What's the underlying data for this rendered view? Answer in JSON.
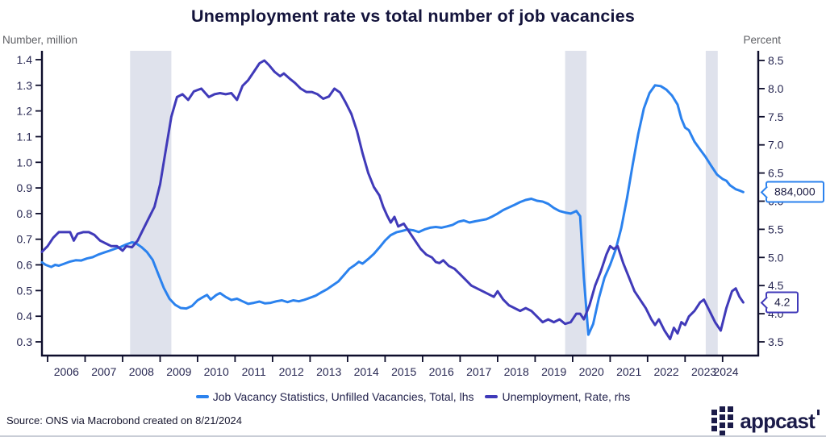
{
  "title": "Unemployment rate vs total number of job vacancies",
  "left_axis_unit": "Number, million",
  "right_axis_unit": "Percent",
  "footer": {
    "source": "Source: ONS via Macrobond created on 8/21/2024",
    "logo_text": "appcast"
  },
  "colors": {
    "vacancies": "#2b82ee",
    "unemployment": "#403ab9",
    "band": "#dfe2ec",
    "axis": "#0d0d2b",
    "tick_label": "#272752",
    "title": "#14143c",
    "unit_label": "#5f6065"
  },
  "chart_data": {
    "type": "line",
    "title": "Unemployment rate vs total number of job vacancies",
    "x_range": [
      2005.85,
      2024.95
    ],
    "x_ticks": [
      2006,
      2007,
      2008,
      2009,
      2010,
      2011,
      2012,
      2013,
      2014,
      2015,
      2016,
      2017,
      2018,
      2019,
      2020,
      2021,
      2022,
      2023,
      2024
    ],
    "left_axis_label": "Number, million",
    "left_range": [
      0.3,
      1.4
    ],
    "left_ticks": [
      1.4,
      1.3,
      1.2,
      1.1,
      1.0,
      0.9,
      0.8,
      0.7,
      0.6,
      0.5,
      0.4,
      0.3
    ],
    "right_axis_label": "Percent",
    "right_range": [
      3.5,
      8.5
    ],
    "right_ticks": [
      8.5,
      8.0,
      7.5,
      7.0,
      6.5,
      6.0,
      5.5,
      5.0,
      4.5,
      4.0,
      3.5
    ],
    "grid": false,
    "legend_position": "bottom",
    "recession_bands": [
      [
        2008.2,
        2009.3
      ],
      [
        2019.8,
        2020.37
      ],
      [
        2023.55,
        2023.87
      ]
    ],
    "callouts": [
      {
        "text": "884,000",
        "series": 0
      },
      {
        "text": "4.2",
        "series": 1
      }
    ],
    "series": [
      {
        "name": "Job Vacancy Statistics, Unfilled Vacancies, Total, lhs",
        "axis": "left",
        "color": "#2b82ee",
        "points": [
          [
            2005.85,
            0.61
          ],
          [
            2005.95,
            0.6
          ],
          [
            2006.1,
            0.592
          ],
          [
            2006.2,
            0.6
          ],
          [
            2006.3,
            0.597
          ],
          [
            2006.45,
            0.605
          ],
          [
            2006.6,
            0.613
          ],
          [
            2006.75,
            0.618
          ],
          [
            2006.9,
            0.617
          ],
          [
            2007.05,
            0.625
          ],
          [
            2007.2,
            0.63
          ],
          [
            2007.35,
            0.64
          ],
          [
            2007.5,
            0.648
          ],
          [
            2007.65,
            0.655
          ],
          [
            2007.8,
            0.663
          ],
          [
            2007.95,
            0.67
          ],
          [
            2008.1,
            0.68
          ],
          [
            2008.25,
            0.688
          ],
          [
            2008.35,
            0.685
          ],
          [
            2008.5,
            0.67
          ],
          [
            2008.65,
            0.65
          ],
          [
            2008.8,
            0.62
          ],
          [
            2008.95,
            0.565
          ],
          [
            2009.1,
            0.51
          ],
          [
            2009.25,
            0.468
          ],
          [
            2009.4,
            0.445
          ],
          [
            2009.55,
            0.432
          ],
          [
            2009.7,
            0.43
          ],
          [
            2009.85,
            0.44
          ],
          [
            2010.0,
            0.462
          ],
          [
            2010.15,
            0.475
          ],
          [
            2010.25,
            0.483
          ],
          [
            2010.35,
            0.465
          ],
          [
            2010.5,
            0.483
          ],
          [
            2010.6,
            0.49
          ],
          [
            2010.75,
            0.475
          ],
          [
            2010.9,
            0.463
          ],
          [
            2011.05,
            0.468
          ],
          [
            2011.2,
            0.458
          ],
          [
            2011.35,
            0.448
          ],
          [
            2011.5,
            0.452
          ],
          [
            2011.65,
            0.457
          ],
          [
            2011.8,
            0.45
          ],
          [
            2011.95,
            0.452
          ],
          [
            2012.1,
            0.458
          ],
          [
            2012.25,
            0.462
          ],
          [
            2012.4,
            0.455
          ],
          [
            2012.55,
            0.462
          ],
          [
            2012.7,
            0.458
          ],
          [
            2012.85,
            0.464
          ],
          [
            2013.0,
            0.472
          ],
          [
            2013.15,
            0.48
          ],
          [
            2013.3,
            0.493
          ],
          [
            2013.45,
            0.505
          ],
          [
            2013.6,
            0.52
          ],
          [
            2013.75,
            0.535
          ],
          [
            2013.9,
            0.56
          ],
          [
            2014.05,
            0.585
          ],
          [
            2014.2,
            0.6
          ],
          [
            2014.3,
            0.612
          ],
          [
            2014.4,
            0.605
          ],
          [
            2014.55,
            0.623
          ],
          [
            2014.7,
            0.643
          ],
          [
            2014.85,
            0.668
          ],
          [
            2015.0,
            0.695
          ],
          [
            2015.15,
            0.716
          ],
          [
            2015.3,
            0.727
          ],
          [
            2015.45,
            0.732
          ],
          [
            2015.6,
            0.738
          ],
          [
            2015.75,
            0.735
          ],
          [
            2015.9,
            0.728
          ],
          [
            2016.05,
            0.738
          ],
          [
            2016.2,
            0.745
          ],
          [
            2016.35,
            0.748
          ],
          [
            2016.5,
            0.745
          ],
          [
            2016.65,
            0.75
          ],
          [
            2016.8,
            0.756
          ],
          [
            2016.95,
            0.768
          ],
          [
            2017.1,
            0.773
          ],
          [
            2017.25,
            0.765
          ],
          [
            2017.4,
            0.77
          ],
          [
            2017.55,
            0.774
          ],
          [
            2017.7,
            0.778
          ],
          [
            2017.85,
            0.788
          ],
          [
            2018.0,
            0.8
          ],
          [
            2018.15,
            0.814
          ],
          [
            2018.3,
            0.824
          ],
          [
            2018.45,
            0.834
          ],
          [
            2018.6,
            0.845
          ],
          [
            2018.75,
            0.853
          ],
          [
            2018.9,
            0.858
          ],
          [
            2019.05,
            0.85
          ],
          [
            2019.2,
            0.847
          ],
          [
            2019.35,
            0.838
          ],
          [
            2019.5,
            0.822
          ],
          [
            2019.65,
            0.81
          ],
          [
            2019.8,
            0.804
          ],
          [
            2019.95,
            0.8
          ],
          [
            2020.1,
            0.81
          ],
          [
            2020.2,
            0.79
          ],
          [
            2020.3,
            0.55
          ],
          [
            2020.42,
            0.328
          ],
          [
            2020.55,
            0.37
          ],
          [
            2020.7,
            0.47
          ],
          [
            2020.85,
            0.55
          ],
          [
            2021.0,
            0.6
          ],
          [
            2021.15,
            0.66
          ],
          [
            2021.3,
            0.745
          ],
          [
            2021.45,
            0.86
          ],
          [
            2021.6,
            0.99
          ],
          [
            2021.75,
            1.11
          ],
          [
            2021.9,
            1.21
          ],
          [
            2022.05,
            1.27
          ],
          [
            2022.2,
            1.3
          ],
          [
            2022.35,
            1.297
          ],
          [
            2022.5,
            1.283
          ],
          [
            2022.65,
            1.26
          ],
          [
            2022.8,
            1.225
          ],
          [
            2022.9,
            1.17
          ],
          [
            2023.0,
            1.135
          ],
          [
            2023.1,
            1.125
          ],
          [
            2023.25,
            1.08
          ],
          [
            2023.4,
            1.05
          ],
          [
            2023.55,
            1.02
          ],
          [
            2023.7,
            0.985
          ],
          [
            2023.85,
            0.952
          ],
          [
            2024.0,
            0.935
          ],
          [
            2024.1,
            0.928
          ],
          [
            2024.2,
            0.91
          ],
          [
            2024.35,
            0.895
          ],
          [
            2024.45,
            0.89
          ],
          [
            2024.55,
            0.884
          ]
        ]
      },
      {
        "name": "Unemployment, Rate, rhs",
        "axis": "right",
        "color": "#403ab9",
        "points": [
          [
            2005.85,
            5.1
          ],
          [
            2006.0,
            5.2
          ],
          [
            2006.15,
            5.35
          ],
          [
            2006.3,
            5.45
          ],
          [
            2006.45,
            5.45
          ],
          [
            2006.6,
            5.45
          ],
          [
            2006.7,
            5.3
          ],
          [
            2006.8,
            5.42
          ],
          [
            2006.95,
            5.45
          ],
          [
            2007.1,
            5.45
          ],
          [
            2007.25,
            5.4
          ],
          [
            2007.4,
            5.3
          ],
          [
            2007.55,
            5.25
          ],
          [
            2007.7,
            5.2
          ],
          [
            2007.85,
            5.2
          ],
          [
            2008.0,
            5.12
          ],
          [
            2008.1,
            5.2
          ],
          [
            2008.25,
            5.18
          ],
          [
            2008.4,
            5.3
          ],
          [
            2008.55,
            5.5
          ],
          [
            2008.7,
            5.7
          ],
          [
            2008.85,
            5.9
          ],
          [
            2009.0,
            6.3
          ],
          [
            2009.15,
            6.9
          ],
          [
            2009.3,
            7.5
          ],
          [
            2009.45,
            7.85
          ],
          [
            2009.6,
            7.9
          ],
          [
            2009.75,
            7.8
          ],
          [
            2009.9,
            7.95
          ],
          [
            2010.1,
            8.0
          ],
          [
            2010.3,
            7.85
          ],
          [
            2010.45,
            7.9
          ],
          [
            2010.6,
            7.92
          ],
          [
            2010.75,
            7.9
          ],
          [
            2010.9,
            7.92
          ],
          [
            2011.05,
            7.8
          ],
          [
            2011.2,
            8.05
          ],
          [
            2011.35,
            8.15
          ],
          [
            2011.5,
            8.3
          ],
          [
            2011.65,
            8.45
          ],
          [
            2011.78,
            8.5
          ],
          [
            2011.9,
            8.42
          ],
          [
            2012.05,
            8.3
          ],
          [
            2012.2,
            8.22
          ],
          [
            2012.3,
            8.27
          ],
          [
            2012.45,
            8.18
          ],
          [
            2012.6,
            8.1
          ],
          [
            2012.75,
            8.0
          ],
          [
            2012.9,
            7.94
          ],
          [
            2013.05,
            7.94
          ],
          [
            2013.2,
            7.9
          ],
          [
            2013.35,
            7.82
          ],
          [
            2013.5,
            7.86
          ],
          [
            2013.65,
            8.0
          ],
          [
            2013.8,
            7.93
          ],
          [
            2013.95,
            7.75
          ],
          [
            2014.1,
            7.55
          ],
          [
            2014.25,
            7.25
          ],
          [
            2014.4,
            6.85
          ],
          [
            2014.55,
            6.5
          ],
          [
            2014.7,
            6.25
          ],
          [
            2014.85,
            6.1
          ],
          [
            2014.95,
            5.9
          ],
          [
            2015.05,
            5.75
          ],
          [
            2015.15,
            5.62
          ],
          [
            2015.25,
            5.72
          ],
          [
            2015.35,
            5.55
          ],
          [
            2015.5,
            5.6
          ],
          [
            2015.65,
            5.45
          ],
          [
            2015.8,
            5.3
          ],
          [
            2015.95,
            5.15
          ],
          [
            2016.1,
            5.05
          ],
          [
            2016.25,
            5.0
          ],
          [
            2016.35,
            4.92
          ],
          [
            2016.45,
            4.9
          ],
          [
            2016.55,
            4.95
          ],
          [
            2016.7,
            4.85
          ],
          [
            2016.85,
            4.8
          ],
          [
            2017.0,
            4.7
          ],
          [
            2017.15,
            4.6
          ],
          [
            2017.3,
            4.5
          ],
          [
            2017.45,
            4.45
          ],
          [
            2017.6,
            4.4
          ],
          [
            2017.75,
            4.35
          ],
          [
            2017.9,
            4.3
          ],
          [
            2018.0,
            4.4
          ],
          [
            2018.15,
            4.25
          ],
          [
            2018.3,
            4.15
          ],
          [
            2018.45,
            4.1
          ],
          [
            2018.6,
            4.05
          ],
          [
            2018.75,
            4.1
          ],
          [
            2018.9,
            4.05
          ],
          [
            2019.05,
            3.95
          ],
          [
            2019.2,
            3.85
          ],
          [
            2019.35,
            3.9
          ],
          [
            2019.5,
            3.85
          ],
          [
            2019.65,
            3.9
          ],
          [
            2019.8,
            3.82
          ],
          [
            2019.95,
            3.85
          ],
          [
            2020.1,
            4.0
          ],
          [
            2020.2,
            4.0
          ],
          [
            2020.3,
            3.9
          ],
          [
            2020.45,
            4.15
          ],
          [
            2020.6,
            4.5
          ],
          [
            2020.75,
            4.75
          ],
          [
            2020.9,
            5.05
          ],
          [
            2021.0,
            5.2
          ],
          [
            2021.1,
            5.15
          ],
          [
            2021.2,
            5.2
          ],
          [
            2021.35,
            4.9
          ],
          [
            2021.5,
            4.65
          ],
          [
            2021.65,
            4.4
          ],
          [
            2021.8,
            4.25
          ],
          [
            2021.95,
            4.1
          ],
          [
            2022.1,
            3.9
          ],
          [
            2022.2,
            3.8
          ],
          [
            2022.3,
            3.9
          ],
          [
            2022.45,
            3.7
          ],
          [
            2022.6,
            3.55
          ],
          [
            2022.7,
            3.75
          ],
          [
            2022.8,
            3.65
          ],
          [
            2022.9,
            3.85
          ],
          [
            2023.0,
            3.8
          ],
          [
            2023.1,
            3.95
          ],
          [
            2023.25,
            4.05
          ],
          [
            2023.4,
            4.2
          ],
          [
            2023.5,
            4.25
          ],
          [
            2023.65,
            4.05
          ],
          [
            2023.8,
            3.85
          ],
          [
            2023.95,
            3.7
          ],
          [
            2024.1,
            4.1
          ],
          [
            2024.25,
            4.4
          ],
          [
            2024.35,
            4.45
          ],
          [
            2024.45,
            4.3
          ],
          [
            2024.55,
            4.2
          ]
        ]
      }
    ]
  }
}
